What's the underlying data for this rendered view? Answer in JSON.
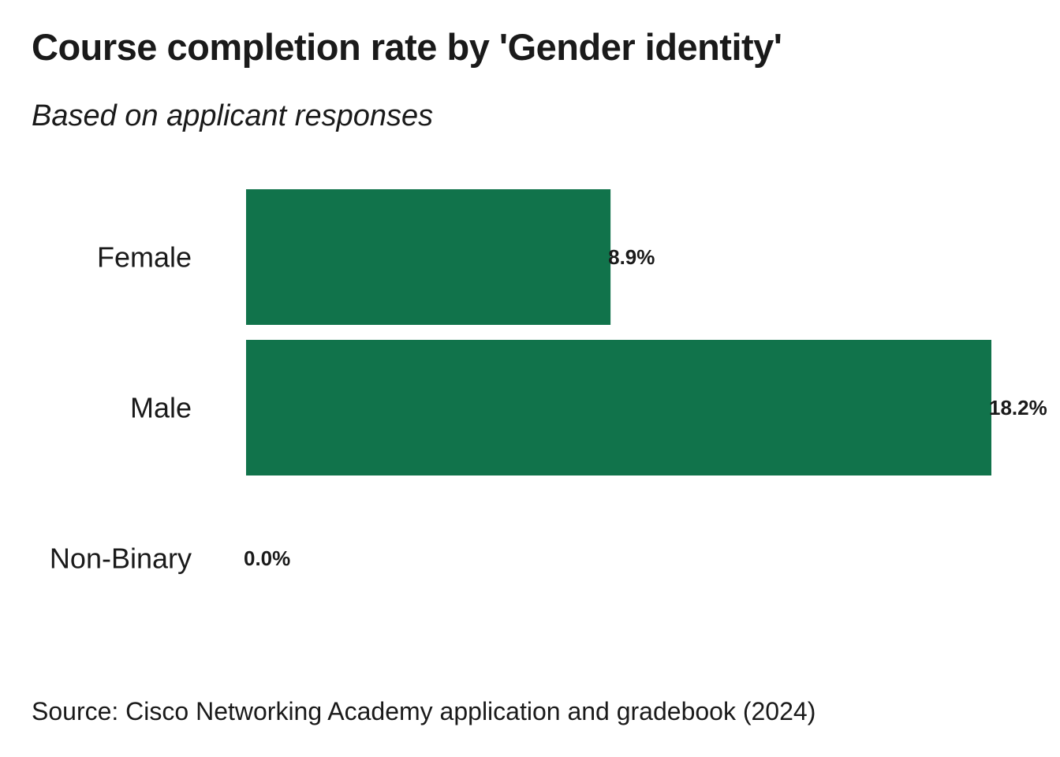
{
  "title": "Course completion rate by 'Gender identity'",
  "subtitle": "Based on applicant responses",
  "source": "Source: Cisco Networking Academy application and gradebook (2024)",
  "colors": {
    "bar": "#11734b",
    "text": "#1a1a1a"
  },
  "chart_data": {
    "type": "bar",
    "orientation": "horizontal",
    "categories": [
      "Female",
      "Male",
      "Non-Binary"
    ],
    "values": [
      8.9,
      18.2,
      0.0
    ],
    "value_labels": [
      "8.9%",
      "18.2%",
      "0.0%"
    ],
    "unit": "%",
    "xlim": [
      0,
      18.2
    ],
    "title": "Course completion rate by 'Gender identity'",
    "subtitle": "Based on applicant responses",
    "xlabel": "",
    "ylabel": "",
    "grid": false,
    "legend": "none"
  }
}
